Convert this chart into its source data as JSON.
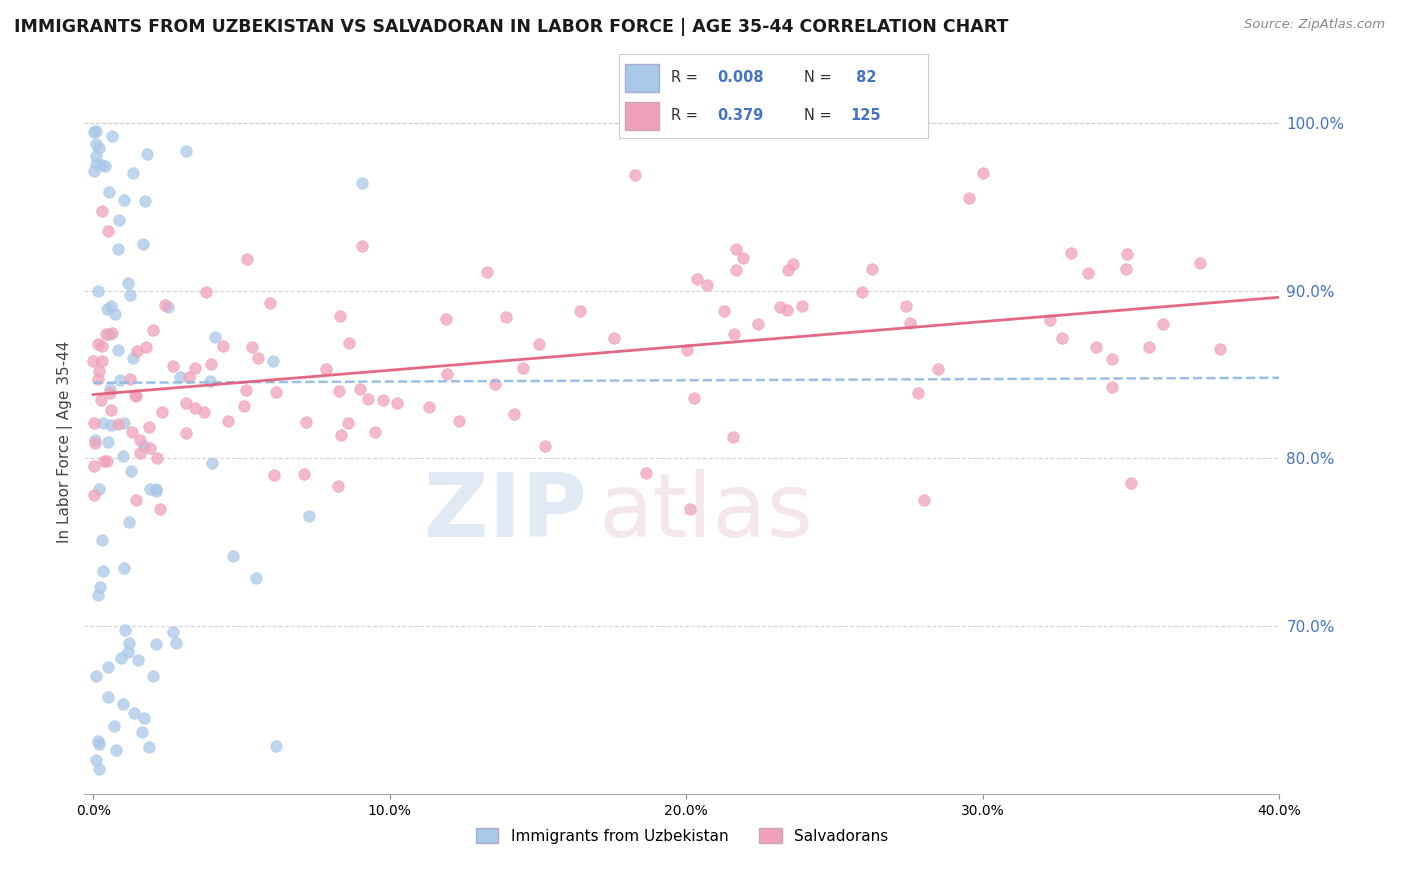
{
  "title": "IMMIGRANTS FROM UZBEKISTAN VS SALVADORAN IN LABOR FORCE | AGE 35-44 CORRELATION CHART",
  "source": "Source: ZipAtlas.com",
  "ylabel": "In Labor Force | Age 35-44",
  "color_uzbek": "#a8c8e8",
  "color_uzbek_line": "#90b8e0",
  "color_salvadoran": "#f0a0b8",
  "color_salvadoran_line": "#e05878",
  "color_blue_text": "#4472c4",
  "color_dark_text": "#333333",
  "background_color": "#ffffff",
  "xlim": [
    0.0,
    0.4
  ],
  "ylim": [
    0.6,
    1.02
  ],
  "x_ticks": [
    0.0,
    0.1,
    0.2,
    0.3,
    0.4
  ],
  "y_ticks": [
    0.7,
    0.8,
    0.9,
    1.0
  ],
  "uzbek_trend_x": [
    0.0,
    0.4
  ],
  "uzbek_trend_y": [
    0.845,
    0.848
  ],
  "salv_trend_x": [
    0.0,
    0.4
  ],
  "salv_trend_y": [
    0.838,
    0.896
  ]
}
